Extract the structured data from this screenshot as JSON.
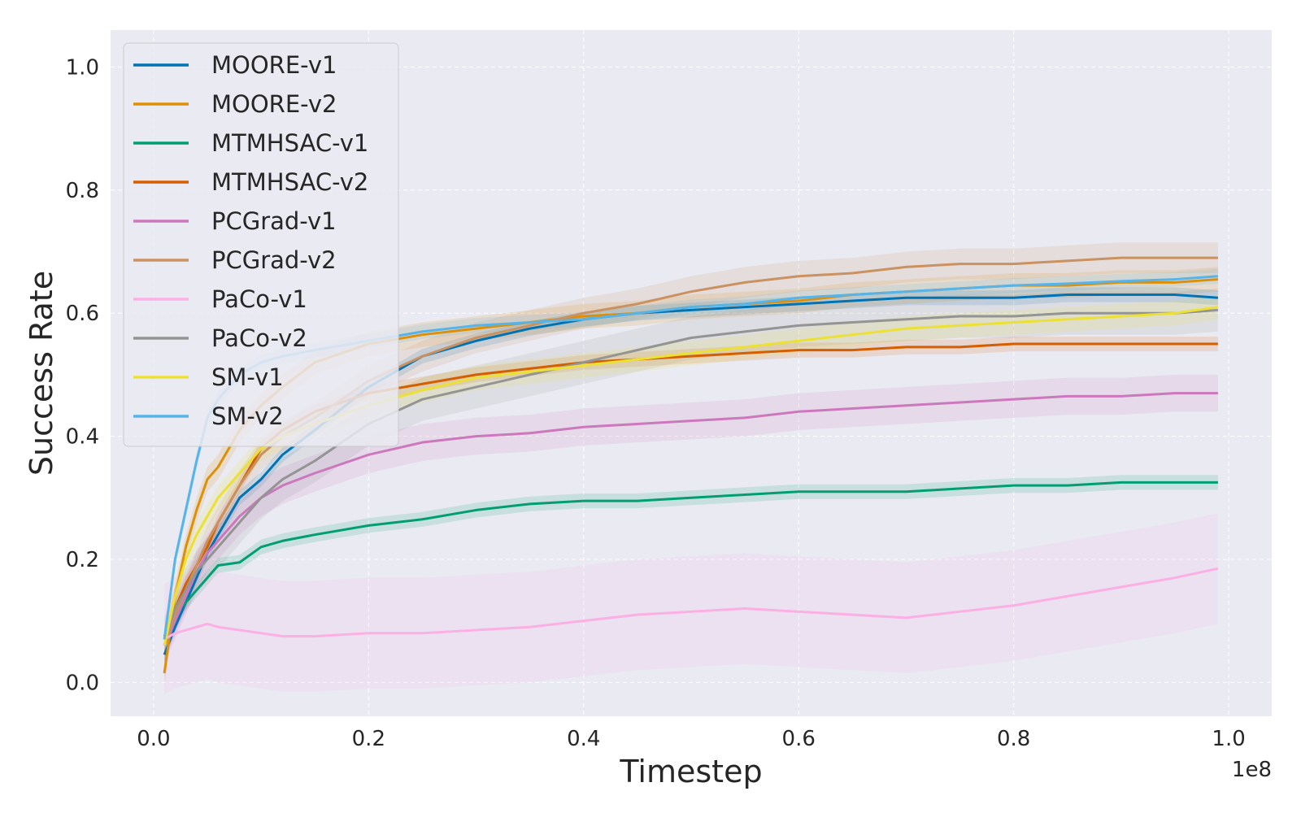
{
  "chart_data": {
    "type": "line",
    "title": "",
    "xlabel": "Timestep",
    "ylabel": "Success Rate",
    "x_multiplier_label": "1e8",
    "xlim": [
      -0.04,
      1.04
    ],
    "ylim": [
      -0.055,
      1.06
    ],
    "xticks": [
      0.0,
      0.2,
      0.4,
      0.6,
      0.8,
      1.0
    ],
    "xtick_labels": [
      "0.0",
      "0.2",
      "0.4",
      "0.6",
      "0.8",
      "1.0"
    ],
    "yticks": [
      0.0,
      0.2,
      0.4,
      0.6,
      0.8,
      1.0
    ],
    "ytick_labels": [
      "0.0",
      "0.2",
      "0.4",
      "0.6",
      "0.8",
      "1.0"
    ],
    "grid": true,
    "legend_position": "top-left",
    "series": [
      {
        "name": "MOORE-v1",
        "color": "#0173b2",
        "band": 0.012,
        "x": [
          0.01,
          0.02,
          0.03,
          0.04,
          0.05,
          0.06,
          0.08,
          0.1,
          0.12,
          0.15,
          0.2,
          0.25,
          0.3,
          0.35,
          0.4,
          0.45,
          0.5,
          0.55,
          0.6,
          0.65,
          0.7,
          0.75,
          0.8,
          0.85,
          0.9,
          0.95,
          0.99
        ],
        "y": [
          0.045,
          0.09,
          0.13,
          0.17,
          0.21,
          0.24,
          0.3,
          0.33,
          0.37,
          0.41,
          0.48,
          0.53,
          0.555,
          0.575,
          0.59,
          0.6,
          0.605,
          0.61,
          0.615,
          0.62,
          0.625,
          0.625,
          0.625,
          0.63,
          0.63,
          0.63,
          0.625
        ]
      },
      {
        "name": "MOORE-v2",
        "color": "#de8f05",
        "band": 0.02,
        "x": [
          0.01,
          0.02,
          0.03,
          0.04,
          0.05,
          0.06,
          0.08,
          0.1,
          0.12,
          0.15,
          0.2,
          0.25,
          0.3,
          0.35,
          0.4,
          0.45,
          0.5,
          0.55,
          0.6,
          0.65,
          0.7,
          0.75,
          0.8,
          0.85,
          0.9,
          0.95,
          0.99
        ],
        "y": [
          0.015,
          0.14,
          0.22,
          0.28,
          0.33,
          0.35,
          0.41,
          0.45,
          0.48,
          0.52,
          0.55,
          0.565,
          0.575,
          0.585,
          0.595,
          0.6,
          0.61,
          0.615,
          0.62,
          0.63,
          0.635,
          0.64,
          0.645,
          0.645,
          0.65,
          0.65,
          0.655
        ]
      },
      {
        "name": "MTMHSAC-v1",
        "color": "#029e73",
        "band": 0.012,
        "x": [
          0.01,
          0.02,
          0.03,
          0.04,
          0.05,
          0.06,
          0.08,
          0.1,
          0.12,
          0.15,
          0.2,
          0.25,
          0.3,
          0.35,
          0.4,
          0.45,
          0.5,
          0.55,
          0.6,
          0.65,
          0.7,
          0.75,
          0.8,
          0.85,
          0.9,
          0.95,
          0.99
        ],
        "y": [
          0.075,
          0.11,
          0.13,
          0.15,
          0.17,
          0.19,
          0.195,
          0.22,
          0.23,
          0.24,
          0.255,
          0.265,
          0.28,
          0.29,
          0.295,
          0.295,
          0.3,
          0.305,
          0.31,
          0.31,
          0.31,
          0.315,
          0.32,
          0.32,
          0.325,
          0.325,
          0.325
        ]
      },
      {
        "name": "MTMHSAC-v2",
        "color": "#d55e00",
        "band": 0.012,
        "x": [
          0.01,
          0.02,
          0.03,
          0.04,
          0.05,
          0.06,
          0.08,
          0.1,
          0.12,
          0.15,
          0.2,
          0.25,
          0.3,
          0.35,
          0.4,
          0.45,
          0.5,
          0.55,
          0.6,
          0.65,
          0.7,
          0.75,
          0.8,
          0.85,
          0.9,
          0.95,
          0.99
        ],
        "y": [
          0.06,
          0.12,
          0.16,
          0.19,
          0.22,
          0.26,
          0.32,
          0.38,
          0.41,
          0.44,
          0.47,
          0.485,
          0.5,
          0.51,
          0.52,
          0.525,
          0.53,
          0.535,
          0.54,
          0.54,
          0.545,
          0.545,
          0.55,
          0.55,
          0.55,
          0.55,
          0.55
        ]
      },
      {
        "name": "PCGrad-v1",
        "color": "#cc78bc",
        "band": 0.03,
        "x": [
          0.01,
          0.02,
          0.03,
          0.04,
          0.05,
          0.06,
          0.08,
          0.1,
          0.12,
          0.15,
          0.2,
          0.25,
          0.3,
          0.35,
          0.4,
          0.45,
          0.5,
          0.55,
          0.6,
          0.65,
          0.7,
          0.75,
          0.8,
          0.85,
          0.9,
          0.95,
          0.99
        ],
        "y": [
          0.06,
          0.1,
          0.14,
          0.18,
          0.21,
          0.23,
          0.27,
          0.3,
          0.32,
          0.34,
          0.37,
          0.39,
          0.4,
          0.405,
          0.415,
          0.42,
          0.425,
          0.43,
          0.44,
          0.445,
          0.45,
          0.455,
          0.46,
          0.465,
          0.465,
          0.47,
          0.47
        ]
      },
      {
        "name": "PCGrad-v2",
        "color": "#ca9161",
        "band": 0.025,
        "x": [
          0.01,
          0.02,
          0.03,
          0.04,
          0.05,
          0.06,
          0.08,
          0.1,
          0.12,
          0.15,
          0.2,
          0.25,
          0.3,
          0.35,
          0.4,
          0.45,
          0.5,
          0.55,
          0.6,
          0.65,
          0.7,
          0.75,
          0.8,
          0.85,
          0.9,
          0.95,
          0.99
        ],
        "y": [
          0.06,
          0.11,
          0.15,
          0.19,
          0.23,
          0.26,
          0.32,
          0.37,
          0.4,
          0.43,
          0.49,
          0.53,
          0.56,
          0.58,
          0.6,
          0.615,
          0.635,
          0.65,
          0.66,
          0.665,
          0.675,
          0.68,
          0.68,
          0.685,
          0.69,
          0.69,
          0.69
        ]
      },
      {
        "name": "PaCo-v1",
        "color": "#fbafe4",
        "band": 0.09,
        "x": [
          0.01,
          0.02,
          0.03,
          0.04,
          0.05,
          0.06,
          0.08,
          0.1,
          0.12,
          0.15,
          0.2,
          0.25,
          0.3,
          0.35,
          0.4,
          0.45,
          0.5,
          0.55,
          0.6,
          0.65,
          0.7,
          0.75,
          0.8,
          0.85,
          0.9,
          0.95,
          0.99
        ],
        "y": [
          0.07,
          0.08,
          0.085,
          0.09,
          0.095,
          0.09,
          0.085,
          0.08,
          0.075,
          0.075,
          0.08,
          0.08,
          0.085,
          0.09,
          0.1,
          0.11,
          0.115,
          0.12,
          0.115,
          0.11,
          0.105,
          0.115,
          0.125,
          0.14,
          0.155,
          0.17,
          0.185
        ]
      },
      {
        "name": "PaCo-v2",
        "color": "#949494",
        "band": 0.035,
        "x": [
          0.01,
          0.02,
          0.03,
          0.04,
          0.05,
          0.06,
          0.08,
          0.1,
          0.12,
          0.15,
          0.2,
          0.25,
          0.3,
          0.35,
          0.4,
          0.45,
          0.5,
          0.55,
          0.6,
          0.65,
          0.7,
          0.75,
          0.8,
          0.85,
          0.9,
          0.95,
          0.99
        ],
        "y": [
          0.07,
          0.12,
          0.15,
          0.18,
          0.2,
          0.22,
          0.26,
          0.3,
          0.33,
          0.36,
          0.42,
          0.46,
          0.48,
          0.5,
          0.52,
          0.54,
          0.56,
          0.57,
          0.58,
          0.585,
          0.59,
          0.595,
          0.595,
          0.6,
          0.6,
          0.6,
          0.605
        ]
      },
      {
        "name": "SM-v1",
        "color": "#ece133",
        "band": 0.02,
        "x": [
          0.01,
          0.02,
          0.03,
          0.04,
          0.05,
          0.06,
          0.08,
          0.1,
          0.12,
          0.15,
          0.2,
          0.25,
          0.3,
          0.35,
          0.4,
          0.45,
          0.5,
          0.55,
          0.6,
          0.65,
          0.7,
          0.75,
          0.8,
          0.85,
          0.9,
          0.95,
          0.99
        ],
        "y": [
          0.06,
          0.14,
          0.2,
          0.24,
          0.27,
          0.3,
          0.34,
          0.38,
          0.4,
          0.42,
          0.45,
          0.475,
          0.495,
          0.505,
          0.515,
          0.525,
          0.535,
          0.545,
          0.555,
          0.565,
          0.575,
          0.58,
          0.585,
          0.59,
          0.595,
          0.6,
          0.61
        ]
      },
      {
        "name": "SM-v2",
        "color": "#56b4e9",
        "band": 0.012,
        "x": [
          0.01,
          0.02,
          0.03,
          0.04,
          0.05,
          0.06,
          0.08,
          0.1,
          0.12,
          0.15,
          0.2,
          0.25,
          0.3,
          0.35,
          0.4,
          0.45,
          0.5,
          0.55,
          0.6,
          0.65,
          0.7,
          0.75,
          0.8,
          0.85,
          0.9,
          0.95,
          0.99
        ],
        "y": [
          0.07,
          0.2,
          0.28,
          0.36,
          0.43,
          0.46,
          0.5,
          0.52,
          0.53,
          0.54,
          0.555,
          0.57,
          0.58,
          0.585,
          0.59,
          0.6,
          0.61,
          0.615,
          0.625,
          0.63,
          0.635,
          0.64,
          0.645,
          0.648,
          0.652,
          0.655,
          0.66
        ]
      }
    ]
  },
  "style": {
    "plot_background": "#eaeaf2",
    "legend_background": "#eaeaf2",
    "legend_border": "#cccccc",
    "text_color": "#262626"
  }
}
